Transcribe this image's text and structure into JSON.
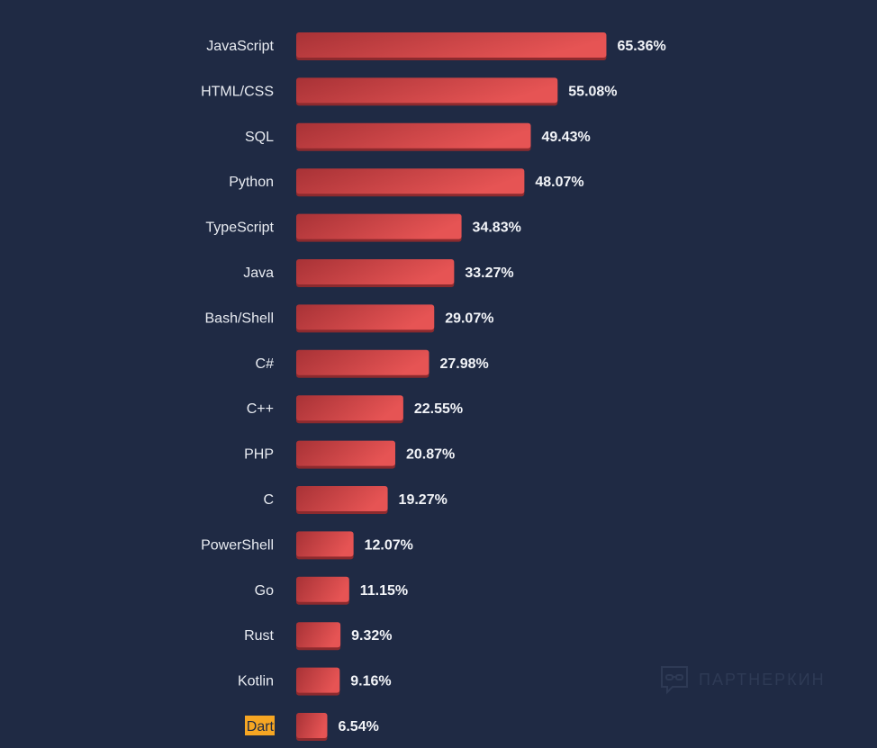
{
  "chart_data": {
    "type": "bar",
    "orientation": "horizontal",
    "title": "",
    "xlabel": "",
    "ylabel": "",
    "value_suffix": "%",
    "xlim": [
      0,
      70
    ],
    "grid": false,
    "categories": [
      "JavaScript",
      "HTML/CSS",
      "SQL",
      "Python",
      "TypeScript",
      "Java",
      "Bash/Shell",
      "C#",
      "C++",
      "PHP",
      "C",
      "PowerShell",
      "Go",
      "Rust",
      "Kotlin",
      "Dart"
    ],
    "values": [
      65.36,
      55.08,
      49.43,
      48.07,
      34.83,
      33.27,
      29.07,
      27.98,
      22.55,
      20.87,
      19.27,
      12.07,
      11.15,
      9.32,
      9.16,
      6.54
    ],
    "value_labels": [
      "65.36%",
      "55.08%",
      "49.43%",
      "48.07%",
      "34.83%",
      "33.27%",
      "29.07%",
      "27.98%",
      "22.55%",
      "20.87%",
      "19.27%",
      "12.07%",
      "11.15%",
      "9.32%",
      "9.16%",
      "6.54%"
    ],
    "highlighted_category": "Dart",
    "colors": {
      "background": "#1f2a44",
      "bar_start": "#a83236",
      "bar_end": "#e65454",
      "bar_shadow": "#8c2a2e",
      "highlight": "#f6a623"
    }
  },
  "watermark": {
    "text": "ПАРТНЕРКИН"
  }
}
